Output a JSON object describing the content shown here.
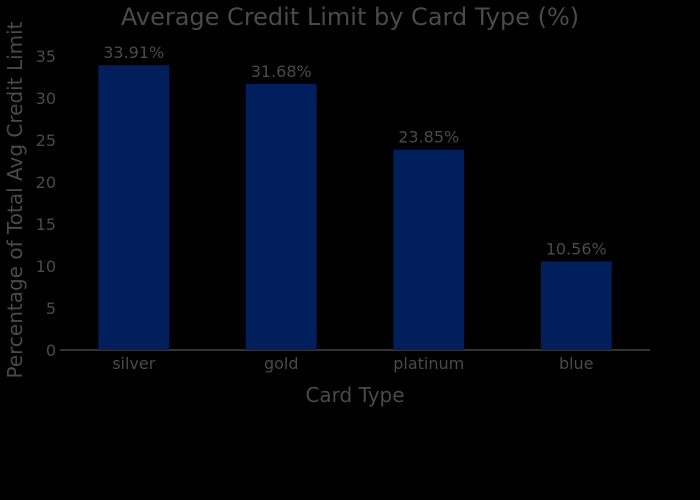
{
  "chart_data": {
    "type": "bar",
    "title": "Average Credit Limit by Card Type (%)",
    "xlabel": "Card Type",
    "ylabel": "Percentage of Total Avg Credit Limit",
    "categories": [
      "silver",
      "gold",
      "platinum",
      "blue"
    ],
    "values": [
      33.91,
      31.68,
      23.85,
      10.56
    ],
    "data_labels": [
      "33.91%",
      "31.68%",
      "23.85%",
      "10.56%"
    ],
    "ylim": [
      0,
      36
    ],
    "yticks": [
      0,
      5,
      10,
      15,
      20,
      25,
      30,
      35
    ],
    "grid": false,
    "colors": {
      "background": "#000000",
      "bar": "#001f5c",
      "text": "#4a4a4a",
      "axis": "#444444"
    }
  }
}
